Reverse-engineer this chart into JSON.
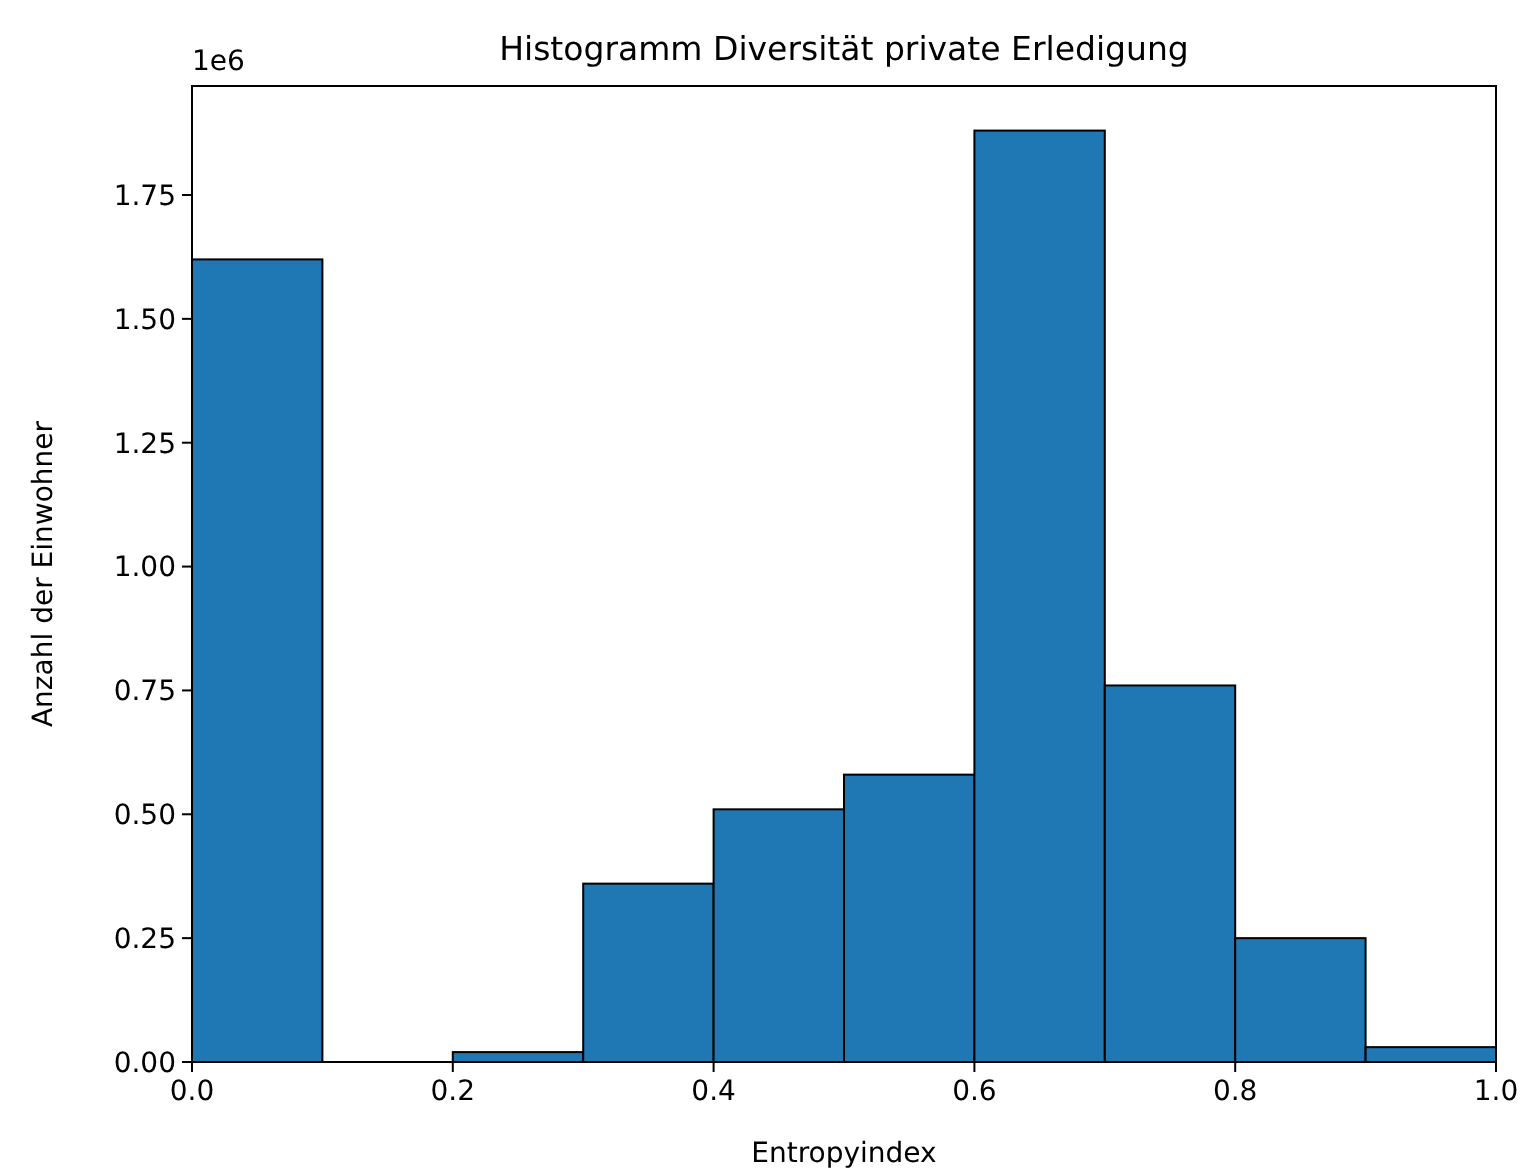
{
  "chart_data": {
    "type": "histogram",
    "title": "Histogramm Diversität private Erledigung",
    "xlabel": "Entropyindex",
    "ylabel": "Anzahl der Einwohner",
    "annotations": [
      "1e6"
    ],
    "bins": [
      0,
      0.1,
      0.2,
      0.3,
      0.4,
      0.5,
      0.6,
      0.7,
      0.8,
      0.9,
      1.0
    ],
    "values": [
      1.62,
      0,
      0.02,
      0.36,
      0.51,
      0.58,
      1.88,
      0.76,
      0.25,
      0.03
    ],
    "color": "#1f77b4",
    "grid": false,
    "xlim": [
      0,
      1
    ],
    "xticks": [
      {
        "value": 0,
        "label": "0.0"
      },
      {
        "value": 0.2,
        "label": "0.2"
      },
      {
        "value": 0.4,
        "label": "0.4"
      },
      {
        "value": 0.6,
        "label": "0.6"
      },
      {
        "value": 0.8,
        "label": "0.8"
      },
      {
        "value": 1,
        "label": "1.0"
      }
    ],
    "ylim": [
      0,
      1.97
    ],
    "yticks": [
      {
        "value": 0,
        "label": "0.00"
      },
      {
        "value": 0.25,
        "label": "0.25"
      },
      {
        "value": 0.5,
        "label": "0.50"
      },
      {
        "value": 0.75,
        "label": "0.75"
      },
      {
        "value": 1,
        "label": "1.00"
      },
      {
        "value": 1.25,
        "label": "1.25"
      },
      {
        "value": 1.5,
        "label": "1.50"
      },
      {
        "value": 1.75,
        "label": "1.75"
      }
    ]
  }
}
